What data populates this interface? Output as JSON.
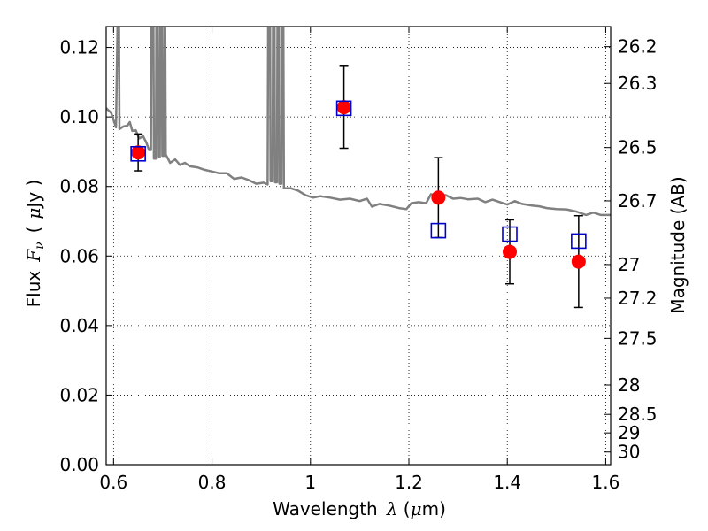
{
  "chart_data": {
    "type": "scatter",
    "xlabel": "Wavelength",
    "xlabel_symbol": "λ",
    "xlabel_unit_open": " (",
    "xlabel_unit_mu": "μ",
    "xlabel_unit_rest": "m)",
    "ylabel": "Flux",
    "ylabel_symbol": "F",
    "ylabel_symbol_sub": "ν",
    "ylabel_unit_open": "(",
    "ylabel_unit_mu": "μ",
    "ylabel_unit_rest": "Jy )",
    "y2label": "Magnitude (AB)",
    "xlim": [
      0.585,
      1.61
    ],
    "ylim": [
      0.0,
      0.126
    ],
    "grid": true,
    "grid_style": "dotted",
    "x_ticks": [
      {
        "value": 0.6,
        "label": "0.6"
      },
      {
        "value": 0.8,
        "label": "0.8"
      },
      {
        "value": 1.0,
        "label": "1"
      },
      {
        "value": 1.2,
        "label": "1.2"
      },
      {
        "value": 1.4,
        "label": "1.4"
      },
      {
        "value": 1.6,
        "label": "1.6"
      }
    ],
    "y_ticks": [
      {
        "value": 0.0,
        "label": "0.00"
      },
      {
        "value": 0.02,
        "label": "0.02"
      },
      {
        "value": 0.04,
        "label": "0.04"
      },
      {
        "value": 0.06,
        "label": "0.06"
      },
      {
        "value": 0.08,
        "label": "0.08"
      },
      {
        "value": 0.1,
        "label": "0.10"
      },
      {
        "value": 0.12,
        "label": "0.12"
      }
    ],
    "y2_ticks": [
      {
        "value": 26.2,
        "label": "26.2"
      },
      {
        "value": 26.3,
        "label": "26.3"
      },
      {
        "value": 26.5,
        "label": "26.5"
      },
      {
        "value": 26.7,
        "label": "26.7"
      },
      {
        "value": 27.0,
        "label": "27"
      },
      {
        "value": 27.2,
        "label": "27.2"
      },
      {
        "value": 27.5,
        "label": "27.5"
      },
      {
        "value": 28.0,
        "label": "28"
      },
      {
        "value": 28.5,
        "label": "28.5"
      },
      {
        "value": 29.0,
        "label": "29"
      },
      {
        "value": 30.0,
        "label": "30"
      }
    ],
    "series": [
      {
        "kind": "observed",
        "marker": "filled-circle",
        "color": "#ff0000",
        "points": [
          {
            "x": 0.65,
            "y": 0.0898,
            "err": 0.0053
          },
          {
            "x": 1.068,
            "y": 0.1028,
            "err": 0.0118
          },
          {
            "x": 1.26,
            "y": 0.0768,
            "err": 0.0115
          },
          {
            "x": 1.405,
            "y": 0.0612,
            "err": 0.0092
          },
          {
            "x": 1.545,
            "y": 0.0584,
            "err": 0.0132
          }
        ]
      },
      {
        "kind": "model",
        "marker": "open-square",
        "color": "#0000cc",
        "points": [
          {
            "x": 0.65,
            "y": 0.0894
          },
          {
            "x": 1.068,
            "y": 0.1025
          },
          {
            "x": 1.26,
            "y": 0.0673
          },
          {
            "x": 1.405,
            "y": 0.0663
          },
          {
            "x": 1.545,
            "y": 0.0643
          }
        ]
      },
      {
        "kind": "spectrum",
        "marker": "line",
        "color": "#808080",
        "points": [
          [
            0.585,
            0.1025
          ],
          [
            0.595,
            0.1012
          ],
          [
            0.605,
            0.097
          ],
          [
            0.608,
            0.126
          ],
          [
            0.611,
            0.126
          ],
          [
            0.612,
            0.0965
          ],
          [
            0.62,
            0.0973
          ],
          [
            0.628,
            0.0975
          ],
          [
            0.633,
            0.0985
          ],
          [
            0.638,
            0.096
          ],
          [
            0.645,
            0.0962
          ],
          [
            0.652,
            0.0938
          ],
          [
            0.66,
            0.0945
          ],
          [
            0.667,
            0.0925
          ],
          [
            0.672,
            0.0905
          ],
          [
            0.676,
            0.0905
          ],
          [
            0.677,
            0.126
          ],
          [
            0.681,
            0.126
          ],
          [
            0.682,
            0.088
          ],
          [
            0.686,
            0.088
          ],
          [
            0.687,
            0.126
          ],
          [
            0.69,
            0.126
          ],
          [
            0.691,
            0.0885
          ],
          [
            0.694,
            0.0885
          ],
          [
            0.695,
            0.126
          ],
          [
            0.698,
            0.126
          ],
          [
            0.699,
            0.0888
          ],
          [
            0.702,
            0.0888
          ],
          [
            0.703,
            0.126
          ],
          [
            0.705,
            0.126
          ],
          [
            0.706,
            0.0892
          ],
          [
            0.715,
            0.0868
          ],
          [
            0.725,
            0.0878
          ],
          [
            0.735,
            0.0862
          ],
          [
            0.745,
            0.0868
          ],
          [
            0.755,
            0.0858
          ],
          [
            0.77,
            0.0855
          ],
          [
            0.785,
            0.0848
          ],
          [
            0.8,
            0.0843
          ],
          [
            0.815,
            0.0838
          ],
          [
            0.83,
            0.0838
          ],
          [
            0.845,
            0.0822
          ],
          [
            0.86,
            0.0826
          ],
          [
            0.875,
            0.0818
          ],
          [
            0.89,
            0.0808
          ],
          [
            0.905,
            0.0811
          ],
          [
            0.913,
            0.0806
          ],
          [
            0.914,
            0.126
          ],
          [
            0.918,
            0.126
          ],
          [
            0.919,
            0.0815
          ],
          [
            0.923,
            0.0815
          ],
          [
            0.924,
            0.126
          ],
          [
            0.927,
            0.126
          ],
          [
            0.928,
            0.0812
          ],
          [
            0.932,
            0.0812
          ],
          [
            0.933,
            0.126
          ],
          [
            0.936,
            0.126
          ],
          [
            0.937,
            0.0808
          ],
          [
            0.941,
            0.0808
          ],
          [
            0.942,
            0.126
          ],
          [
            0.945,
            0.126
          ],
          [
            0.946,
            0.0795
          ],
          [
            0.96,
            0.0795
          ],
          [
            0.975,
            0.0788
          ],
          [
            0.99,
            0.0775
          ],
          [
            1.005,
            0.0768
          ],
          [
            1.02,
            0.0772
          ],
          [
            1.04,
            0.0768
          ],
          [
            1.06,
            0.0762
          ],
          [
            1.08,
            0.0765
          ],
          [
            1.1,
            0.0758
          ],
          [
            1.115,
            0.0765
          ],
          [
            1.125,
            0.0742
          ],
          [
            1.14,
            0.075
          ],
          [
            1.16,
            0.0745
          ],
          [
            1.18,
            0.0738
          ],
          [
            1.195,
            0.0735
          ],
          [
            1.205,
            0.0752
          ],
          [
            1.22,
            0.0755
          ],
          [
            1.235,
            0.0752
          ],
          [
            1.245,
            0.0778
          ],
          [
            1.26,
            0.0772
          ],
          [
            1.275,
            0.0775
          ],
          [
            1.29,
            0.0765
          ],
          [
            1.305,
            0.0767
          ],
          [
            1.32,
            0.0763
          ],
          [
            1.34,
            0.0765
          ],
          [
            1.355,
            0.0755
          ],
          [
            1.37,
            0.0762
          ],
          [
            1.385,
            0.0755
          ],
          [
            1.4,
            0.0748
          ],
          [
            1.415,
            0.0758
          ],
          [
            1.43,
            0.075
          ],
          [
            1.45,
            0.0745
          ],
          [
            1.465,
            0.0743
          ],
          [
            1.48,
            0.0738
          ],
          [
            1.5,
            0.0735
          ],
          [
            1.52,
            0.0734
          ],
          [
            1.54,
            0.0728
          ],
          [
            1.56,
            0.0718
          ],
          [
            1.575,
            0.0725
          ],
          [
            1.59,
            0.0718
          ],
          [
            1.61,
            0.0718
          ]
        ]
      }
    ]
  }
}
